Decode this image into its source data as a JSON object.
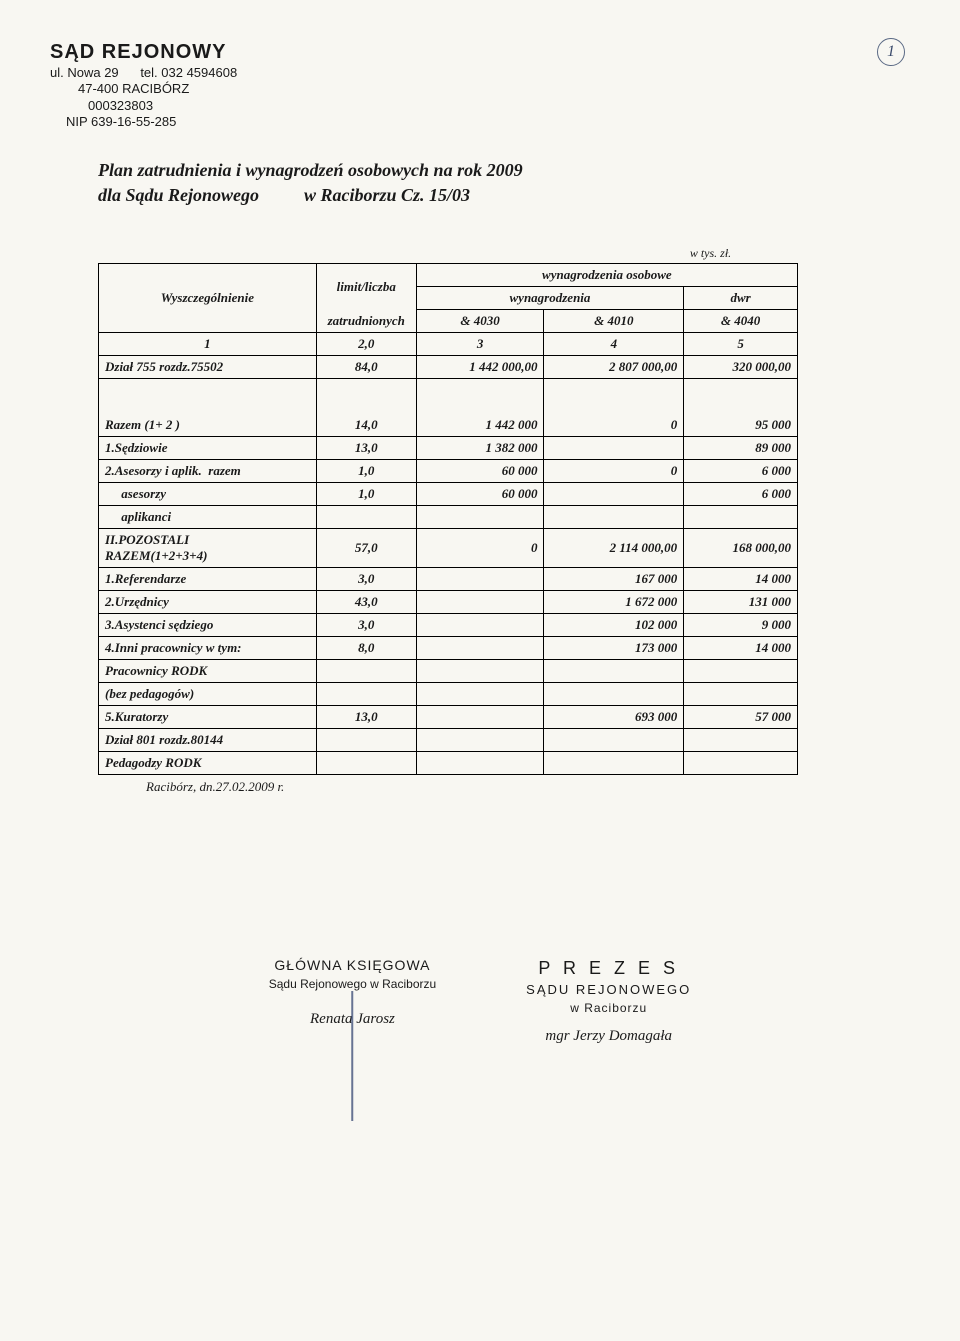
{
  "page_number": "1",
  "letterhead": {
    "line1": "SĄD  REJONOWY",
    "line2": "ul. Nowa 29      tel. 032 4594608",
    "line3": "47-400 RACIBÓRZ",
    "line4": "000323803",
    "line5": "NIP 639-16-55-285"
  },
  "title": {
    "line1": "Plan zatrudnienia i wynagrodzeń osobowych na rok 2009",
    "line2": "dla Sądu Rejonowego          w Raciborzu Cz. 15/03"
  },
  "unit_note": "w tys. zł.",
  "headers": {
    "col1": "Wyszczególnienie",
    "col2_top": "limit/liczba",
    "col2_bottom": "zatrudnionych",
    "group_top": "wynagrodzenia osobowe",
    "wyn": "wynagrodzenia",
    "dwr": "dwr",
    "sub1": "& 4030",
    "sub2": "& 4010",
    "sub3": "& 4040"
  },
  "colnums": {
    "c1": "1",
    "c2": "2,0",
    "c3": "3",
    "c4": "4",
    "c5": "5"
  },
  "rows": [
    {
      "label": "Dział 755 rozdz.75502",
      "n": "84,0",
      "v1": "1 442 000,00",
      "v2": "2 807 000,00",
      "v3": "320 000,00",
      "cls": "normal"
    },
    {
      "label": "Razem (1+ 2 )",
      "n": "14,0",
      "v1": "1 442 000",
      "v2": "0",
      "v3": "95 000",
      "cls": "tall"
    },
    {
      "label": "1.Sędziowie",
      "n": "13,0",
      "v1": "1 382 000",
      "v2": "",
      "v3": "89 000",
      "cls": "normal"
    },
    {
      "label": "2.Asesorzy i aplik.  razem",
      "n": "1,0",
      "v1": "60 000",
      "v2": "0",
      "v3": "6 000",
      "cls": "normal"
    },
    {
      "label": "     asesorzy",
      "n": "1,0",
      "v1": "60 000",
      "v2": "",
      "v3": "6 000",
      "cls": "normal"
    },
    {
      "label": "     aplikanci",
      "n": "",
      "v1": "",
      "v2": "",
      "v3": "",
      "cls": "normal"
    },
    {
      "label": "II.POZOSTALI\nRAZEM(1+2+3+4)",
      "n": "57,0",
      "v1": "0",
      "v2": "2 114 000,00",
      "v3": "168 000,00",
      "cls": "normal",
      "multiline": true
    },
    {
      "label": "1.Referendarze",
      "n": "3,0",
      "v1": "",
      "v2": "167 000",
      "v3": "14 000",
      "cls": "normal"
    },
    {
      "label": "2.Urzędnicy",
      "n": "43,0",
      "v1": "",
      "v2": "1 672 000",
      "v3": "131 000",
      "cls": "normal"
    },
    {
      "label": "3.Asystenci sędziego",
      "n": "3,0",
      "v1": "",
      "v2": "102 000",
      "v3": "9 000",
      "cls": "normal"
    },
    {
      "label": "4.Inni pracownicy w tym:",
      "n": "8,0",
      "v1": "",
      "v2": "173 000",
      "v3": "14 000",
      "cls": "normal"
    },
    {
      "label": "Pracownicy RODK",
      "n": "",
      "v1": "",
      "v2": "",
      "v3": "",
      "cls": "normal"
    },
    {
      "label": "(bez pedagogów)",
      "n": "",
      "v1": "",
      "v2": "",
      "v3": "",
      "cls": "normal"
    },
    {
      "label": "5.Kuratorzy",
      "n": "13,0",
      "v1": "",
      "v2": "693 000",
      "v3": "57 000",
      "cls": "normal"
    },
    {
      "label": "Dział 801 rozdz.80144",
      "n": "",
      "v1": "",
      "v2": "",
      "v3": "",
      "cls": "normal"
    },
    {
      "label": "Pedagodzy RODK",
      "n": "",
      "v1": "",
      "v2": "",
      "v3": "",
      "cls": "normal"
    }
  ],
  "footer_date": "Racibórz, dn.27.02.2009 r.",
  "sig_left": {
    "title": "GŁÓWNA  KSIĘGOWA",
    "sub": "Sądu Rejonowego w Raciborzu",
    "name": "Renata Jarosz"
  },
  "sig_right": {
    "title": "P R E Z E S",
    "sub": "SĄDU  REJONOWEGO",
    "loc": "w  Raciborzu",
    "name": "mgr Jerzy Domagała"
  },
  "colors": {
    "page_bg": "#f8f7f2",
    "text": "#1a1a1a",
    "border": "#000000",
    "circle": "#5b6a85"
  },
  "col_widths": {
    "c1": "218px",
    "c2": "100px",
    "c3": "128px",
    "c4": "140px",
    "c5": "114px"
  }
}
